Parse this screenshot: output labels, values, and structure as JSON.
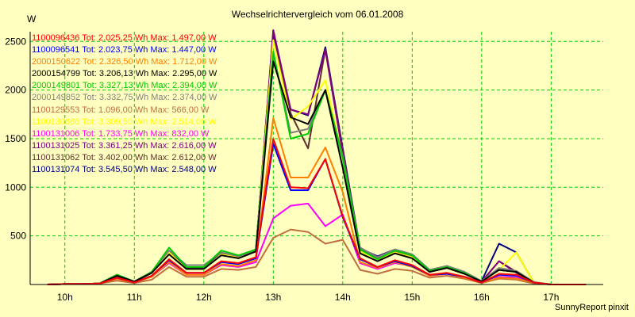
{
  "chart_data": {
    "type": "line",
    "title": "Wechselrichtervergleich vom 06.01.2008",
    "ylabel": "W",
    "footer": "SunnyReport pinxit",
    "ylim": [
      0,
      2600
    ],
    "yticks": [
      "500",
      "1000",
      "1500",
      "2000",
      "2500"
    ],
    "xticks": [
      "10h",
      "11h",
      "12h",
      "13h",
      "14h",
      "15h",
      "16h",
      "17h"
    ],
    "grid": true,
    "legend_position": "top-left",
    "x": [
      "09:45",
      "10:00",
      "10:15",
      "10:30",
      "10:45",
      "11:00",
      "11:15",
      "11:30",
      "11:45",
      "12:00",
      "12:15",
      "12:30",
      "12:45",
      "13:00",
      "13:15",
      "13:30",
      "13:45",
      "14:00",
      "14:15",
      "14:30",
      "14:45",
      "15:00",
      "15:15",
      "15:30",
      "15:45",
      "16:00",
      "16:15",
      "16:30",
      "16:45",
      "17:00",
      "17:15",
      "17:30"
    ],
    "series": [
      {
        "name": "1100096436",
        "legend": "1100096436 Tot: 2.025,25 Wh Max: 1.497,00 W",
        "color": "#ff0000",
        "values": [
          0,
          5,
          5,
          10,
          70,
          20,
          90,
          260,
          120,
          120,
          240,
          220,
          280,
          1497,
          1000,
          990,
          1290,
          700,
          270,
          180,
          250,
          200,
          100,
          120,
          80,
          20,
          110,
          100,
          20,
          0,
          0,
          0
        ]
      },
      {
        "name": "1100096541",
        "legend": "1100096541 Tot: 2.023,75 Wh Max: 1.447,00 W",
        "color": "#0000ff",
        "values": [
          0,
          5,
          5,
          10,
          70,
          20,
          90,
          250,
          120,
          120,
          230,
          210,
          270,
          1447,
          970,
          970,
          1290,
          690,
          260,
          180,
          240,
          190,
          100,
          110,
          80,
          20,
          100,
          90,
          20,
          0,
          0,
          0
        ]
      },
      {
        "name": "2000150622",
        "legend": "2000150622 Tot: 2.326,50 Wh Max: 1.712,00 W",
        "color": "#ff8000",
        "values": [
          0,
          5,
          5,
          10,
          60,
          20,
          80,
          230,
          100,
          100,
          210,
          190,
          250,
          1712,
          1100,
          1100,
          1410,
          950,
          230,
          170,
          230,
          180,
          90,
          110,
          70,
          20,
          70,
          60,
          20,
          0,
          0,
          0
        ]
      },
      {
        "name": "2000154799",
        "legend": "2000154799 Tot: 3.206,13 Wh Max: 2.295,00 W",
        "color": "#000000",
        "values": [
          0,
          5,
          5,
          10,
          90,
          30,
          120,
          310,
          160,
          160,
          300,
          270,
          340,
          2295,
          1720,
          1650,
          2000,
          1200,
          320,
          240,
          320,
          270,
          130,
          170,
          110,
          30,
          150,
          130,
          20,
          0,
          0,
          0
        ]
      },
      {
        "name": "2000149801",
        "legend": "2000149801 Tot: 3.327,13 Wh Max: 2.394,00 W",
        "color": "#00cc00",
        "values": [
          0,
          5,
          5,
          10,
          100,
          30,
          130,
          380,
          180,
          180,
          350,
          300,
          360,
          2394,
          1500,
          1550,
          2000,
          1300,
          360,
          260,
          350,
          300,
          140,
          180,
          120,
          30,
          150,
          130,
          20,
          0,
          0,
          0
        ]
      },
      {
        "name": "2000149852",
        "legend": "2000149852 Tot: 3.332,75 Wh Max: 2.374,00 W",
        "color": "#808080",
        "values": [
          0,
          5,
          5,
          10,
          100,
          30,
          130,
          350,
          200,
          200,
          330,
          290,
          350,
          2374,
          1560,
          1600,
          2000,
          1320,
          380,
          280,
          360,
          310,
          150,
          190,
          130,
          35,
          170,
          140,
          25,
          0,
          0,
          0
        ]
      },
      {
        "name": "1100129553",
        "legend": "1100129553 Tot: 1.096,00 Wh Max: 566,00 W",
        "color": "#c07040",
        "values": [
          0,
          5,
          5,
          10,
          40,
          15,
          50,
          180,
          80,
          80,
          160,
          150,
          180,
          480,
          566,
          540,
          420,
          460,
          150,
          110,
          160,
          140,
          70,
          90,
          60,
          15,
          60,
          50,
          10,
          0,
          0,
          0
        ]
      },
      {
        "name": "1100130866",
        "legend": "1100130866 Tot: 3.309,50 Wh Max: 2.514,00 W",
        "color": "#ffff00",
        "values": [
          0,
          5,
          5,
          10,
          90,
          30,
          120,
          330,
          160,
          160,
          310,
          280,
          350,
          2514,
          1700,
          1830,
          2100,
          1300,
          340,
          260,
          330,
          280,
          140,
          180,
          120,
          30,
          150,
          330,
          20,
          0,
          0,
          0
        ]
      },
      {
        "name": "1100131006",
        "legend": "1100131006 Tot: 1.733,75 Wh Max: 832,00 W",
        "color": "#ff00ff",
        "values": [
          0,
          5,
          5,
          10,
          60,
          20,
          80,
          220,
          100,
          100,
          200,
          180,
          230,
          680,
          810,
          832,
          600,
          720,
          220,
          160,
          220,
          190,
          90,
          110,
          70,
          20,
          80,
          70,
          15,
          0,
          0,
          0
        ]
      },
      {
        "name": "1100131025",
        "legend": "1100131025 Tot: 3.361,25 Wh Max: 2.616,00 W",
        "color": "#800080",
        "values": [
          0,
          5,
          5,
          10,
          90,
          30,
          120,
          330,
          160,
          160,
          310,
          280,
          350,
          2616,
          1800,
          1750,
          2410,
          1350,
          350,
          270,
          340,
          290,
          140,
          180,
          120,
          30,
          240,
          120,
          20,
          0,
          0,
          0
        ]
      },
      {
        "name": "1100131062",
        "legend": "1100131062 Tot: 3.402,00 Wh Max: 2.612,00 W",
        "color": "#603030",
        "values": [
          0,
          5,
          5,
          10,
          90,
          30,
          120,
          330,
          160,
          160,
          310,
          280,
          350,
          2612,
          1760,
          1400,
          2420,
          1380,
          360,
          280,
          350,
          300,
          150,
          190,
          130,
          30,
          240,
          130,
          20,
          0,
          0,
          0
        ]
      },
      {
        "name": "1100131074",
        "legend": "1100131074 Tot: 3.545,50 Wh Max: 2.548,00 W",
        "color": "#000080",
        "values": [
          0,
          5,
          5,
          10,
          100,
          30,
          130,
          340,
          170,
          170,
          320,
          290,
          360,
          2548,
          1800,
          1740,
          2440,
          1400,
          370,
          290,
          360,
          310,
          150,
          190,
          130,
          35,
          420,
          330,
          20,
          0,
          0,
          0
        ]
      }
    ]
  }
}
